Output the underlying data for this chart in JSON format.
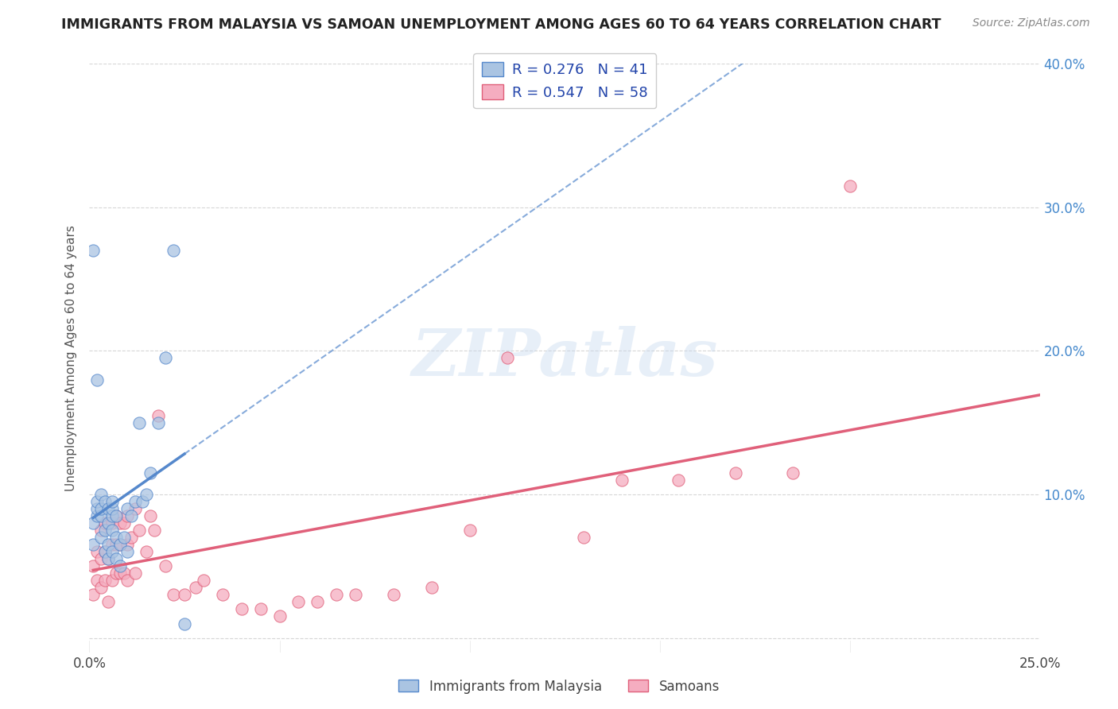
{
  "title": "IMMIGRANTS FROM MALAYSIA VS SAMOAN UNEMPLOYMENT AMONG AGES 60 TO 64 YEARS CORRELATION CHART",
  "source": "Source: ZipAtlas.com",
  "ylabel": "Unemployment Among Ages 60 to 64 years",
  "xlim": [
    0.0,
    0.25
  ],
  "ylim": [
    -0.01,
    0.4
  ],
  "xticks": [
    0.0,
    0.05,
    0.1,
    0.15,
    0.2,
    0.25
  ],
  "yticks": [
    0.0,
    0.1,
    0.2,
    0.3,
    0.4
  ],
  "xtick_labels": [
    "0.0%",
    "",
    "",
    "",
    "",
    "25.0%"
  ],
  "ytick_labels": [
    "",
    "10.0%",
    "20.0%",
    "30.0%",
    "40.0%"
  ],
  "legend_malaysia": "Immigrants from Malaysia",
  "legend_samoans": "Samoans",
  "R_malaysia": 0.276,
  "N_malaysia": 41,
  "R_samoans": 0.547,
  "N_samoans": 58,
  "color_malaysia": "#aac4e2",
  "color_samoans": "#f5adc0",
  "line_malaysia": "#5588cc",
  "line_samoans": "#e0607a",
  "watermark": "ZIPatlas",
  "malaysia_x": [
    0.001,
    0.001,
    0.002,
    0.002,
    0.002,
    0.003,
    0.003,
    0.003,
    0.003,
    0.004,
    0.004,
    0.004,
    0.005,
    0.005,
    0.005,
    0.005,
    0.006,
    0.006,
    0.006,
    0.006,
    0.006,
    0.007,
    0.007,
    0.007,
    0.008,
    0.008,
    0.009,
    0.01,
    0.01,
    0.011,
    0.012,
    0.013,
    0.014,
    0.015,
    0.016,
    0.018,
    0.02,
    0.022,
    0.025,
    0.001,
    0.002
  ],
  "malaysia_y": [
    0.065,
    0.08,
    0.085,
    0.09,
    0.095,
    0.07,
    0.085,
    0.09,
    0.1,
    0.06,
    0.075,
    0.095,
    0.055,
    0.065,
    0.08,
    0.09,
    0.06,
    0.075,
    0.085,
    0.09,
    0.095,
    0.055,
    0.07,
    0.085,
    0.05,
    0.065,
    0.07,
    0.06,
    0.09,
    0.085,
    0.095,
    0.15,
    0.095,
    0.1,
    0.115,
    0.15,
    0.195,
    0.27,
    0.01,
    0.27,
    0.18
  ],
  "samoans_x": [
    0.001,
    0.001,
    0.002,
    0.002,
    0.003,
    0.003,
    0.003,
    0.004,
    0.004,
    0.004,
    0.005,
    0.005,
    0.005,
    0.006,
    0.006,
    0.006,
    0.007,
    0.007,
    0.007,
    0.008,
    0.008,
    0.008,
    0.009,
    0.009,
    0.01,
    0.01,
    0.01,
    0.011,
    0.012,
    0.012,
    0.013,
    0.015,
    0.016,
    0.017,
    0.018,
    0.02,
    0.022,
    0.025,
    0.028,
    0.03,
    0.035,
    0.04,
    0.045,
    0.05,
    0.055,
    0.06,
    0.065,
    0.07,
    0.08,
    0.09,
    0.1,
    0.11,
    0.13,
    0.14,
    0.155,
    0.17,
    0.185,
    0.2
  ],
  "samoans_y": [
    0.03,
    0.05,
    0.04,
    0.06,
    0.035,
    0.055,
    0.075,
    0.04,
    0.06,
    0.08,
    0.025,
    0.055,
    0.08,
    0.04,
    0.065,
    0.08,
    0.045,
    0.065,
    0.085,
    0.045,
    0.065,
    0.08,
    0.045,
    0.08,
    0.04,
    0.065,
    0.085,
    0.07,
    0.045,
    0.09,
    0.075,
    0.06,
    0.085,
    0.075,
    0.155,
    0.05,
    0.03,
    0.03,
    0.035,
    0.04,
    0.03,
    0.02,
    0.02,
    0.015,
    0.025,
    0.025,
    0.03,
    0.03,
    0.03,
    0.035,
    0.075,
    0.195,
    0.07,
    0.11,
    0.11,
    0.115,
    0.115,
    0.315
  ]
}
